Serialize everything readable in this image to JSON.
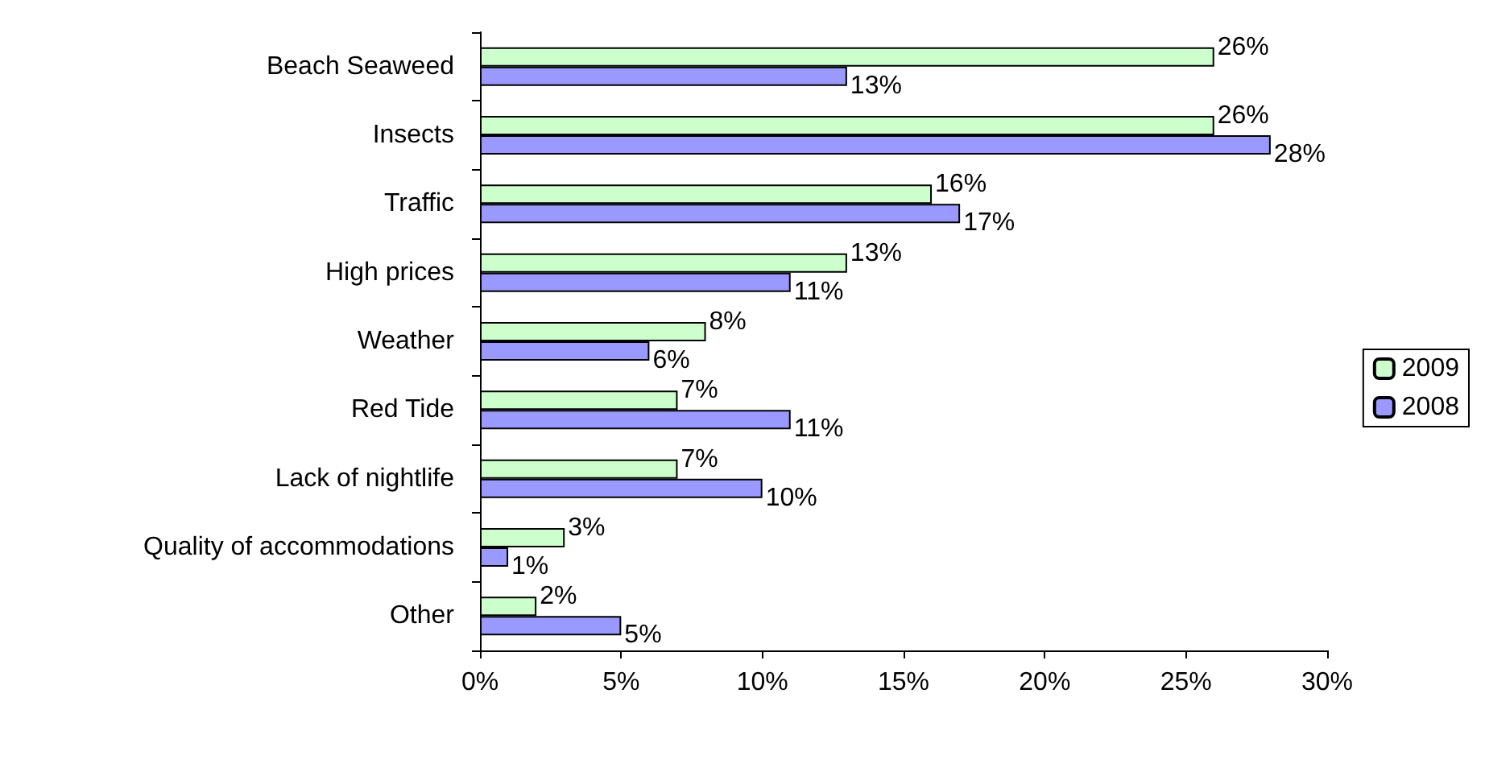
{
  "chart_data": {
    "type": "bar",
    "orientation": "horizontal",
    "categories": [
      "Beach Seaweed",
      "Insects",
      "Traffic",
      "High prices",
      "Weather",
      "Red Tide",
      "Lack of nightlife",
      "Quality of accommodations",
      "Other"
    ],
    "series": [
      {
        "name": "2009",
        "color": "#ccffcc",
        "values": [
          26,
          26,
          16,
          13,
          8,
          7,
          7,
          3,
          2
        ],
        "value_labels": [
          "26%",
          "26%",
          "16%",
          "13%",
          "8%",
          "7%",
          "7%",
          "3%",
          "2%"
        ]
      },
      {
        "name": "2008",
        "color": "#9999ff",
        "values": [
          13,
          28,
          17,
          11,
          6,
          11,
          10,
          1,
          5
        ],
        "value_labels": [
          "13%",
          "28%",
          "17%",
          "11%",
          "6%",
          "11%",
          "10%",
          "1%",
          "5%"
        ]
      }
    ],
    "xlim": [
      0,
      30
    ],
    "xticks": [
      {
        "value": 0,
        "label": "0%"
      },
      {
        "value": 5,
        "label": "5%"
      },
      {
        "value": 10,
        "label": "10%"
      },
      {
        "value": 15,
        "label": "15%"
      },
      {
        "value": 20,
        "label": "20%"
      },
      {
        "value": 25,
        "label": "25%"
      },
      {
        "value": 30,
        "label": "30%"
      }
    ],
    "grid": false,
    "legend": "right"
  }
}
